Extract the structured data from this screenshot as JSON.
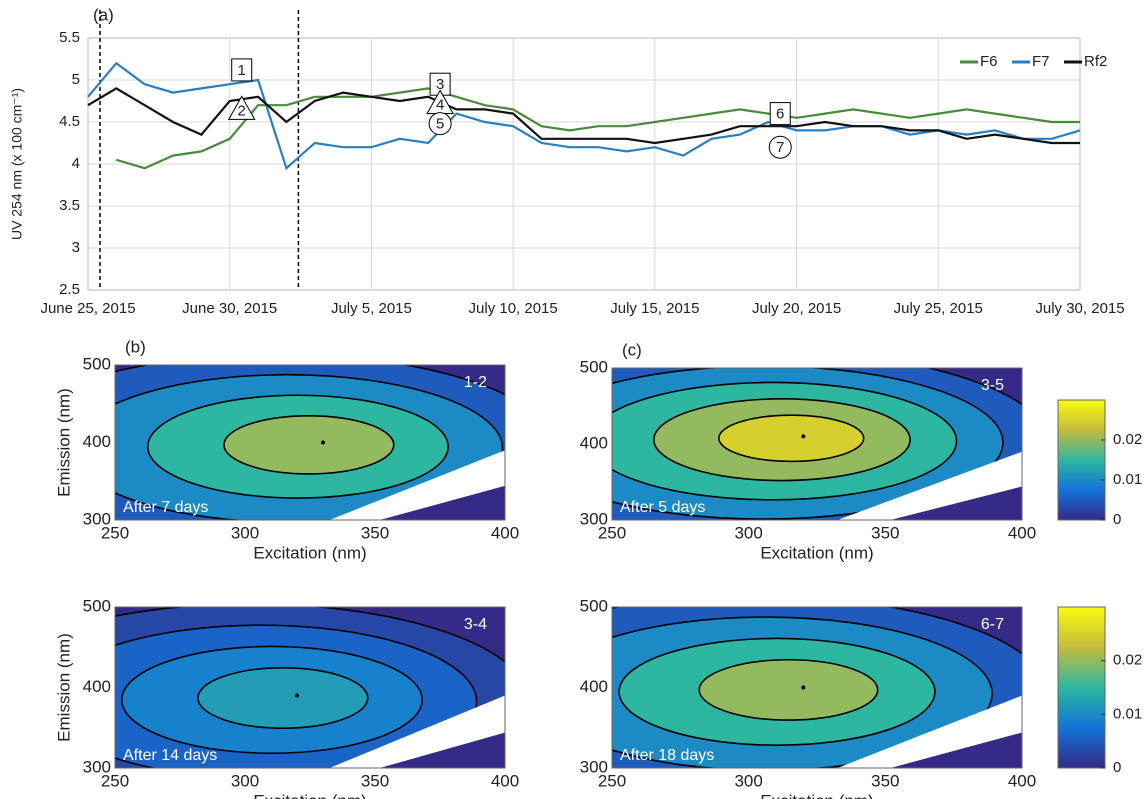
{
  "chart_data": [
    {
      "type": "line",
      "panel_label": "(a)",
      "ylabel": "UV 254 nm (x 100 cm⁻¹)",
      "x": [
        "2015-06-25",
        "2015-06-26",
        "2015-06-27",
        "2015-06-28",
        "2015-06-29",
        "2015-06-30",
        "2015-07-01",
        "2015-07-02",
        "2015-07-03",
        "2015-07-04",
        "2015-07-05",
        "2015-07-06",
        "2015-07-07",
        "2015-07-08",
        "2015-07-09",
        "2015-07-10",
        "2015-07-11",
        "2015-07-12",
        "2015-07-13",
        "2015-07-14",
        "2015-07-15",
        "2015-07-16",
        "2015-07-17",
        "2015-07-18",
        "2015-07-19",
        "2015-07-20",
        "2015-07-21",
        "2015-07-22",
        "2015-07-23",
        "2015-07-24",
        "2015-07-25",
        "2015-07-26",
        "2015-07-27",
        "2015-07-28",
        "2015-07-29",
        "2015-07-30"
      ],
      "series": [
        {
          "name": "F6",
          "color": "#4a8a3c",
          "values": [
            null,
            4.05,
            3.95,
            4.1,
            4.15,
            4.3,
            4.7,
            4.7,
            4.8,
            4.8,
            4.8,
            4.85,
            4.9,
            4.8,
            4.7,
            4.65,
            4.45,
            4.4,
            4.45,
            4.45,
            4.5,
            4.55,
            4.6,
            4.65,
            4.6,
            4.55,
            4.6,
            4.65,
            4.6,
            4.55,
            4.6,
            4.65,
            4.6,
            4.55,
            4.5,
            4.5
          ]
        },
        {
          "name": "F7",
          "color": "#2a7fc4",
          "values": [
            4.8,
            5.2,
            4.95,
            4.85,
            4.9,
            4.95,
            5.0,
            3.95,
            4.25,
            4.2,
            4.2,
            4.3,
            4.25,
            4.6,
            4.5,
            4.45,
            4.25,
            4.2,
            4.2,
            4.15,
            4.2,
            4.1,
            4.3,
            4.35,
            4.5,
            4.4,
            4.4,
            4.45,
            4.45,
            4.35,
            4.4,
            4.35,
            4.4,
            4.3,
            4.3,
            4.4
          ]
        },
        {
          "name": "Rf2",
          "color": "#111111",
          "values": [
            4.7,
            4.9,
            4.7,
            4.5,
            4.35,
            4.75,
            4.8,
            4.5,
            4.75,
            4.85,
            4.8,
            4.75,
            4.8,
            4.65,
            4.65,
            4.6,
            4.3,
            4.3,
            4.3,
            4.3,
            4.25,
            4.3,
            4.35,
            4.45,
            4.45,
            4.45,
            4.5,
            4.45,
            4.45,
            4.4,
            4.4,
            4.3,
            4.35,
            4.3,
            4.25,
            4.25
          ]
        }
      ],
      "xlim": [
        "2015-06-25",
        "2015-07-30"
      ],
      "xticks": [
        {
          "value": "2015-06-25",
          "label": "June 25, 2015"
        },
        {
          "value": "2015-06-30",
          "label": "June 30, 2015"
        },
        {
          "value": "2015-07-05",
          "label": "July 5, 2015"
        },
        {
          "value": "2015-07-10",
          "label": "July 10, 2015"
        },
        {
          "value": "2015-07-15",
          "label": "July 15, 2015"
        },
        {
          "value": "2015-07-20",
          "label": "July 20, 2015"
        },
        {
          "value": "2015-07-25",
          "label": "July 25, 2015"
        },
        {
          "value": "2015-07-30",
          "label": "July 30, 2015"
        }
      ],
      "ylim": [
        2.5,
        5.5
      ],
      "yticks": [
        2.5,
        3,
        3.5,
        4,
        4.5,
        5,
        5.5
      ],
      "grid": true,
      "legend": "upper right",
      "vlines": [
        "2015-06-25",
        "2015-07-02"
      ],
      "annotations": [
        {
          "text": "1",
          "shape": "square",
          "x": "2015-06-30",
          "y": 5.12
        },
        {
          "text": "2",
          "shape": "triangle",
          "x": "2015-06-30",
          "y": 4.65
        },
        {
          "text": "3",
          "shape": "square",
          "x": "2015-07-07",
          "y": 4.95
        },
        {
          "text": "4",
          "shape": "triangle",
          "x": "2015-07-07",
          "y": 4.72
        },
        {
          "text": "5",
          "shape": "circle",
          "x": "2015-07-07",
          "y": 4.48
        },
        {
          "text": "6",
          "shape": "square",
          "x": "2015-07-19",
          "y": 4.6
        },
        {
          "text": "7",
          "shape": "circle",
          "x": "2015-07-19",
          "y": 4.2
        }
      ]
    },
    {
      "type": "contour",
      "panel_label": "(b)",
      "xlabel": "Excitation (nm)",
      "ylabel": "Emission (nm)",
      "xlim": [
        250,
        400
      ],
      "xticks": [
        250,
        300,
        350,
        400
      ],
      "ylim": [
        300,
        500
      ],
      "yticks": [
        300,
        400,
        500
      ],
      "peak": [
        330,
        400
      ],
      "levels": [
        0.005,
        0.01,
        0.015,
        0.02
      ],
      "clim": [
        0,
        0.03
      ],
      "corner_label": "1-2",
      "note": "After 7 days"
    },
    {
      "type": "contour",
      "panel_label": "(c)",
      "xlabel": "Excitation (nm)",
      "ylabel": "",
      "xlim": [
        250,
        400
      ],
      "xticks": [
        250,
        300,
        350,
        400
      ],
      "ylim": [
        300,
        500
      ],
      "yticks": [
        300,
        400,
        500
      ],
      "peak": [
        320,
        410
      ],
      "levels": [
        0.005,
        0.01,
        0.015,
        0.02,
        0.025
      ],
      "clim": [
        0,
        0.03
      ],
      "corner_label": "3-5",
      "note": "After 5 days",
      "colorbar_ticks": [
        0,
        0.01,
        0.02
      ]
    },
    {
      "type": "contour",
      "xlabel": "Excitation (nm)",
      "ylabel": "Emission (nm)",
      "xlim": [
        250,
        400
      ],
      "xticks": [
        250,
        300,
        350,
        400
      ],
      "ylim": [
        300,
        500
      ],
      "yticks": [
        300,
        400,
        500
      ],
      "peak": [
        320,
        390
      ],
      "levels": [
        0.003,
        0.006,
        0.009,
        0.012
      ],
      "clim": [
        0,
        0.03
      ],
      "corner_label": "3-4",
      "note": "After 14 days"
    },
    {
      "type": "contour",
      "xlabel": "Excitation (nm)",
      "ylabel": "",
      "xlim": [
        250,
        400
      ],
      "xticks": [
        250,
        300,
        350,
        400
      ],
      "ylim": [
        300,
        500
      ],
      "yticks": [
        300,
        400,
        500
      ],
      "peak": [
        320,
        400
      ],
      "levels": [
        0.005,
        0.01,
        0.015,
        0.02
      ],
      "clim": [
        0,
        0.03
      ],
      "corner_label": "6-7",
      "note": "After 18 days",
      "colorbar_ticks": [
        0,
        0.01,
        0.02
      ]
    }
  ]
}
